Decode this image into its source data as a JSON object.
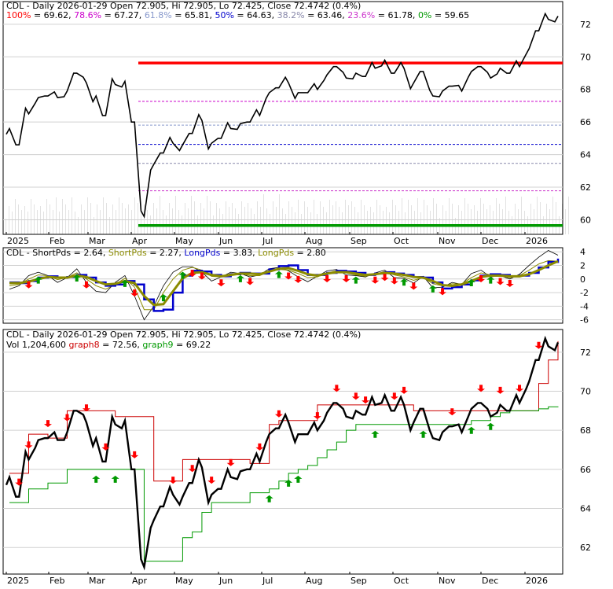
{
  "colors": {
    "red": "#ff0000",
    "dark_red": "#cc0000",
    "magenta": "#cc00cc",
    "light_blue": "#8899cc",
    "blue": "#0000cc",
    "grey_blue": "#8888aa",
    "purple": "#cc33cc",
    "green": "#009900",
    "olive": "#8b8b00",
    "black": "#000000",
    "grid": "#d0d0d0"
  },
  "chart_data": [
    {
      "type": "line",
      "title": "CDL - Daily 2026-01-29 Open 72.905, Hi 72.905, Lo 72.425, Close 72.4742 (0.4%)",
      "fib_levels": [
        {
          "label": "100%",
          "value": 69.62,
          "text": "= 69.62",
          "color": "#ff0000"
        },
        {
          "label": "78.6%",
          "value": 67.27,
          "text": "= 67.27",
          "color": "#cc00cc"
        },
        {
          "label": "61.8%",
          "value": 65.81,
          "text": "= 65.81",
          "color": "#8899cc"
        },
        {
          "label": "50%",
          "value": 64.63,
          "text": "= 64.63",
          "color": "#0000cc"
        },
        {
          "label": "38.2%",
          "value": 63.46,
          "text": "= 63.46",
          "color": "#8888aa"
        },
        {
          "label": "23.6%",
          "value": 61.78,
          "text": "= 61.78",
          "color": "#cc33cc"
        },
        {
          "label": "0%",
          "value": 59.65,
          "text": "= 59.65",
          "color": "#009900"
        }
      ],
      "x_tick_labels": [
        "2025",
        "Feb",
        "Mar",
        "Apr",
        "May",
        "Jun",
        "Jul",
        "Aug",
        "Sep",
        "Oct",
        "Nov",
        "Dec",
        "2026"
      ],
      "y_tick_labels": [
        "60",
        "62",
        "64",
        "66",
        "68",
        "70",
        "72"
      ],
      "ylim": [
        59.3,
        73.2
      ],
      "x": [
        "2025-01-02",
        "2025-01-09",
        "2025-01-16",
        "2025-01-23",
        "2025-01-30",
        "2025-02-06",
        "2025-02-13",
        "2025-02-20",
        "2025-02-27",
        "2025-03-06",
        "2025-03-13",
        "2025-03-20",
        "2025-03-27",
        "2025-04-03",
        "2025-04-08",
        "2025-04-10",
        "2025-04-17",
        "2025-04-24",
        "2025-05-01",
        "2025-05-08",
        "2025-05-15",
        "2025-05-22",
        "2025-05-29",
        "2025-06-05",
        "2025-06-12",
        "2025-06-19",
        "2025-06-26",
        "2025-07-03",
        "2025-07-10",
        "2025-07-17",
        "2025-07-24",
        "2025-07-31",
        "2025-08-07",
        "2025-08-14",
        "2025-08-21",
        "2025-08-28",
        "2025-09-04",
        "2025-09-11",
        "2025-09-18",
        "2025-09-25",
        "2025-10-02",
        "2025-10-09",
        "2025-10-16",
        "2025-10-23",
        "2025-10-30",
        "2025-11-06",
        "2025-11-13",
        "2025-11-20",
        "2025-11-28",
        "2025-12-05",
        "2025-12-12",
        "2025-12-19",
        "2025-12-26",
        "2026-01-02",
        "2026-01-09",
        "2026-01-16",
        "2026-01-23",
        "2026-01-29"
      ],
      "close": [
        65.6,
        64.6,
        66.5,
        67.5,
        67.6,
        67.5,
        67.9,
        69.0,
        68.4,
        67.6,
        66.4,
        68.3,
        68.5,
        66.0,
        60.2,
        63.4,
        64.1,
        64.7,
        64.6,
        65.3,
        66.1,
        64.7,
        65.0,
        65.6,
        65.9,
        66.0,
        66.4,
        67.8,
        68.1,
        68.4,
        67.8,
        67.8,
        68.0,
        68.9,
        69.4,
        68.7,
        69.0,
        68.8,
        69.3,
        69.8,
        69.0,
        69.3,
        68.4,
        69.1,
        67.6,
        67.9,
        68.2,
        67.9,
        69.1,
        69.4,
        68.7,
        69.3,
        69.0,
        69.4,
        70.5,
        71.6,
        72.3,
        72.5
      ]
    },
    {
      "type": "line",
      "title": "CDL - ShortPds = 2.64, ShortPds = 2.27, LongPds = 3.83, LongPds = 2.80",
      "series": [
        {
          "name": "ShortPds",
          "value_text": "2.64",
          "color": "#000000"
        },
        {
          "name": "ShortPds",
          "value_text": "2.27",
          "color": "#8b8b00"
        },
        {
          "name": "LongPds",
          "value_text": "3.83",
          "color": "#0000cc"
        },
        {
          "name": "LongPds",
          "value_text": "2.80",
          "color": "#8b8b00"
        }
      ],
      "y_tick_labels": [
        "4",
        "2",
        "0",
        "-2",
        "-4",
        "-6"
      ],
      "ylim": [
        -6.5,
        4.6
      ],
      "short_fast": [
        -1.5,
        -1.0,
        0.5,
        1.0,
        0.5,
        -0.5,
        0.2,
        1.5,
        -0.5,
        -1.8,
        -2.0,
        -0.5,
        0.5,
        -2.5,
        -6.0,
        -4.0,
        -1.0,
        1.0,
        1.8,
        1.8,
        1.0,
        -0.3,
        0.3,
        1.0,
        0.8,
        0.3,
        0.6,
        1.5,
        1.7,
        1.2,
        0.3,
        -0.4,
        0.4,
        1.2,
        1.4,
        0.6,
        0.5,
        0.3,
        0.9,
        1.3,
        0.2,
        0.1,
        -0.6,
        0.4,
        -1.3,
        -1.2,
        -0.5,
        -0.8,
        0.8,
        1.3,
        0.3,
        0.5,
        0.0,
        0.7,
        2.0,
        3.2,
        4.2,
        3.5
      ],
      "short_slow": [
        -1.0,
        -0.8,
        0.0,
        0.6,
        0.5,
        -0.1,
        0.2,
        0.9,
        0.0,
        -1.0,
        -1.5,
        -0.8,
        0.1,
        -1.2,
        -4.5,
        -4.5,
        -2.0,
        0.0,
        1.3,
        1.7,
        1.3,
        0.4,
        0.3,
        0.8,
        0.8,
        0.5,
        0.5,
        1.1,
        1.4,
        1.3,
        0.8,
        0.2,
        0.3,
        0.9,
        1.2,
        0.9,
        0.6,
        0.4,
        0.7,
        1.1,
        0.6,
        0.3,
        -0.2,
        0.2,
        -0.7,
        -1.0,
        -0.7,
        -0.7,
        0.2,
        0.9,
        0.6,
        0.5,
        0.2,
        0.5,
        1.3,
        2.2,
        2.7,
        2.6
      ],
      "long": [
        -0.5,
        -0.6,
        -0.3,
        0.2,
        0.4,
        0.2,
        0.3,
        0.6,
        0.2,
        -0.5,
        -1.0,
        -0.8,
        -0.3,
        -0.8,
        -3.0,
        -4.7,
        -4.5,
        -2.0,
        0.5,
        1.2,
        1.1,
        0.6,
        0.4,
        0.7,
        0.9,
        0.8,
        0.8,
        1.4,
        1.9,
        2.0,
        1.3,
        0.6,
        0.6,
        0.9,
        1.2,
        1.1,
        0.9,
        0.6,
        0.8,
        1.0,
        0.8,
        0.6,
        0.3,
        0.2,
        -0.5,
        -1.4,
        -1.2,
        -0.8,
        -0.2,
        0.5,
        0.7,
        0.6,
        0.4,
        0.5,
        0.9,
        1.7,
        2.5,
        3.0
      ],
      "long_slow": [
        -0.6,
        -0.6,
        -0.4,
        0.0,
        0.3,
        0.2,
        0.2,
        0.5,
        0.3,
        -0.3,
        -0.8,
        -0.7,
        -0.3,
        -0.6,
        -2.5,
        -3.8,
        -3.7,
        -1.8,
        0.1,
        0.9,
        1.0,
        0.6,
        0.4,
        0.6,
        0.8,
        0.8,
        0.7,
        1.1,
        1.5,
        1.6,
        1.2,
        0.7,
        0.5,
        0.8,
        1.0,
        1.0,
        0.8,
        0.6,
        0.7,
        0.9,
        0.8,
        0.6,
        0.3,
        0.2,
        -0.3,
        -0.9,
        -1.0,
        -0.8,
        -0.3,
        0.3,
        0.5,
        0.5,
        0.4,
        0.4,
        0.7,
        1.3,
        2.0,
        2.6
      ],
      "buy_idx": [
        3,
        7,
        12,
        16,
        18,
        24,
        28,
        36,
        41,
        44,
        48,
        50
      ],
      "sell_idx": [
        2,
        8,
        13,
        19,
        20,
        22,
        25,
        29,
        30,
        33,
        35,
        38,
        39,
        40,
        42,
        45,
        49,
        51,
        52
      ]
    },
    {
      "type": "line",
      "title": "CDL - Daily 2026-01-29 Open 72.905, Hi 72.905, Lo 72.425, Close 72.4742 (0.4%)",
      "volume_text": "Vol 1,204,600",
      "series": [
        {
          "name": "graph8",
          "value_text": "72.56",
          "color": "#cc0000"
        },
        {
          "name": "graph9",
          "value_text": "69.22",
          "color": "#009900"
        }
      ],
      "y_tick_labels": [
        "62",
        "64",
        "66",
        "68",
        "70",
        "72"
      ],
      "ylim": [
        60.8,
        73.0
      ],
      "graph8": [
        65.8,
        65.8,
        67.8,
        67.8,
        67.6,
        67.6,
        69.0,
        69.0,
        69.0,
        69.0,
        69.0,
        68.7,
        68.7,
        68.7,
        68.7,
        65.4,
        65.4,
        65.4,
        66.5,
        66.5,
        66.5,
        66.5,
        66.5,
        66.5,
        66.5,
        66.3,
        66.3,
        68.3,
        68.5,
        68.5,
        68.5,
        68.5,
        69.3,
        69.3,
        69.3,
        69.3,
        69.3,
        69.3,
        69.3,
        69.3,
        69.3,
        69.3,
        69.0,
        69.0,
        69.0,
        69.0,
        69.0,
        69.0,
        69.0,
        69.0,
        69.0,
        69.0,
        69.0,
        69.0,
        69.0,
        70.4,
        71.6,
        72.56
      ],
      "graph9": [
        64.3,
        64.3,
        65.0,
        65.0,
        65.3,
        65.3,
        66.0,
        66.0,
        66.0,
        66.0,
        66.0,
        66.0,
        66.0,
        66.0,
        61.3,
        61.3,
        61.3,
        61.3,
        62.5,
        62.8,
        63.8,
        64.3,
        64.3,
        64.3,
        64.3,
        64.8,
        64.8,
        65.0,
        65.4,
        65.8,
        66.0,
        66.2,
        66.6,
        67.0,
        67.4,
        68.0,
        68.3,
        68.3,
        68.3,
        68.3,
        68.3,
        68.3,
        68.3,
        68.3,
        68.3,
        68.3,
        68.3,
        68.3,
        68.5,
        68.5,
        68.7,
        68.9,
        69.0,
        69.0,
        69.0,
        69.1,
        69.2,
        69.22
      ],
      "price": [
        65.6,
        64.6,
        66.5,
        67.5,
        67.6,
        67.5,
        67.9,
        69.0,
        68.4,
        67.6,
        66.4,
        68.3,
        68.5,
        66.0,
        61.0,
        63.4,
        64.1,
        64.7,
        64.6,
        65.3,
        66.1,
        64.7,
        65.0,
        65.6,
        65.9,
        66.0,
        66.4,
        67.8,
        68.1,
        68.4,
        67.8,
        67.8,
        68.0,
        68.9,
        69.4,
        68.7,
        69.0,
        68.8,
        69.3,
        69.8,
        69.0,
        69.3,
        68.4,
        69.1,
        67.6,
        67.9,
        68.2,
        67.9,
        69.1,
        69.4,
        68.7,
        69.3,
        69.0,
        69.4,
        70.5,
        71.6,
        72.3,
        72.5
      ],
      "buy_idx": [
        9,
        11,
        27,
        29,
        30,
        38,
        43,
        48,
        50
      ],
      "sell_idx": [
        1,
        2,
        4,
        6,
        8,
        10,
        13,
        17,
        19,
        21,
        23,
        26,
        28,
        32,
        34,
        36,
        37,
        40,
        41,
        46,
        49,
        51,
        53,
        55
      ]
    }
  ]
}
